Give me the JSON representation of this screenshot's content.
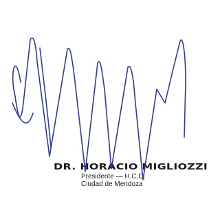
{
  "stamp": {
    "name": "DR. HORACIO MIGLIOZZI",
    "title": "Presidente — H.C.D.",
    "place": "Ciudad de Mendoza"
  }
}
